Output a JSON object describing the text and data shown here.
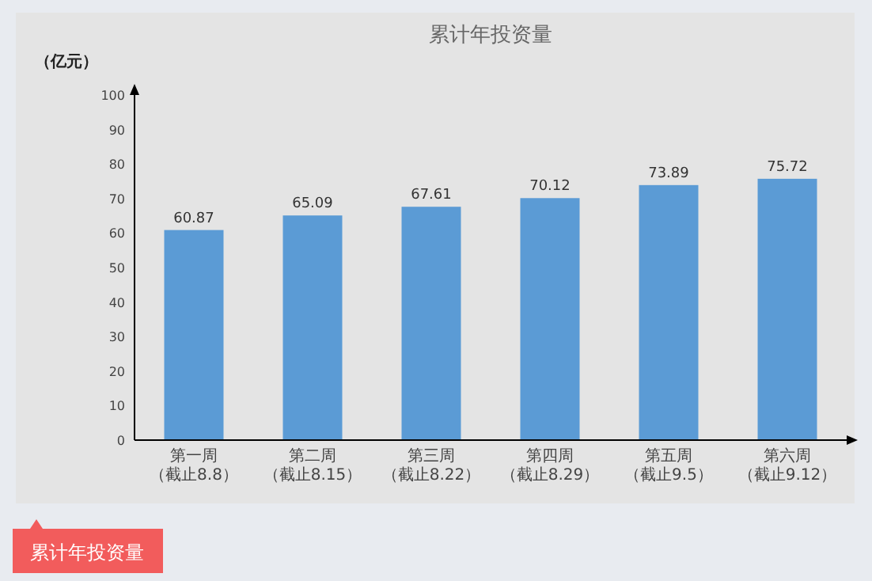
{
  "chart_data": {
    "type": "bar",
    "title": "累计年投资量",
    "ylabel": "（亿元）",
    "categories": [
      "第一周（截止8.8）",
      "第二周（截止8.15）",
      "第三周（截止8.22）",
      "第四周（截止8.29）",
      "第五周（截止9.5）",
      "第六周（截止9.12）"
    ],
    "values": [
      60.87,
      65.09,
      67.61,
      70.12,
      73.89,
      75.72
    ],
    "color": "#5b9bd5",
    "ylim": [
      0,
      100
    ],
    "yticks": [
      0,
      10,
      20,
      30,
      40,
      50,
      60,
      70,
      80,
      90,
      100
    ],
    "grid": false,
    "data_labels": true,
    "annotations": [
      "累计年投资量"
    ]
  }
}
